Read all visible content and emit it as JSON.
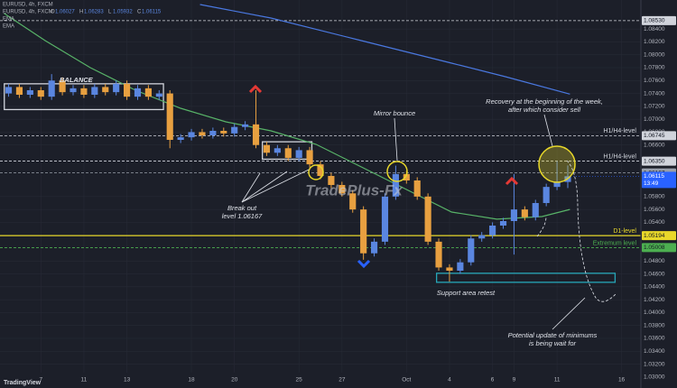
{
  "chart_data": {
    "type": "candlestick",
    "symbol": "EURUSD, 4h, FXCM",
    "ohlc_keys": [
      "O",
      "H",
      "L",
      "C"
    ],
    "x": [
      -1.5,
      -1,
      -0.5,
      0,
      0.5,
      1,
      1.5,
      2,
      2.5,
      3,
      3.5,
      4,
      4.5,
      5,
      5.5,
      6,
      6.5,
      7,
      7.5,
      8,
      8.5,
      9,
      9.5,
      10,
      10.5,
      11,
      11.5,
      12,
      12.5,
      13,
      13.5,
      14,
      14.5,
      15,
      15.5,
      16,
      16.5,
      17,
      17.5,
      18,
      18.5,
      19,
      19.5,
      20,
      20.5,
      21,
      21.5,
      22,
      22.5,
      23,
      23.5,
      24,
      24.5
    ],
    "open": [
      1.074,
      1.075,
      1.0738,
      1.0745,
      1.0735,
      1.076,
      1.0742,
      1.0748,
      1.0738,
      1.075,
      1.0742,
      1.0755,
      1.0735,
      1.0748,
      1.0735,
      1.074,
      1.0668,
      1.0672,
      1.068,
      1.0675,
      1.0682,
      1.0678,
      1.0688,
      1.0692,
      1.066,
      1.0648,
      1.0655,
      1.064,
      1.0652,
      1.063,
      1.0612,
      1.0598,
      1.0585,
      1.056,
      1.0492,
      1.051,
      1.058,
      1.0615,
      1.0605,
      1.058,
      1.051,
      1.047,
      1.0465,
      1.0478,
      1.0515,
      1.052,
      1.0535,
      1.0542,
      1.056,
      1.0548,
      1.057,
      1.0595,
      1.06027
    ],
    "high": [
      1.0755,
      1.0755,
      1.075,
      1.075,
      1.077,
      1.0765,
      1.0753,
      1.0753,
      1.0755,
      1.0755,
      1.076,
      1.076,
      1.0753,
      1.0753,
      1.0745,
      1.0745,
      1.0677,
      1.0685,
      1.0685,
      1.0687,
      1.0687,
      1.0693,
      1.0697,
      1.0745,
      1.0665,
      1.066,
      1.066,
      1.0657,
      1.0657,
      1.0635,
      1.0617,
      1.0603,
      1.059,
      1.0565,
      1.0515,
      1.0585,
      1.0628,
      1.062,
      1.061,
      1.0585,
      1.0515,
      1.0475,
      1.0483,
      1.052,
      1.0525,
      1.054,
      1.0547,
      1.0615,
      1.0565,
      1.0575,
      1.06,
      1.0635,
      1.06283
    ],
    "low": [
      1.0735,
      1.0733,
      1.0733,
      1.073,
      1.073,
      1.0737,
      1.0737,
      1.0733,
      1.0733,
      1.0737,
      1.0737,
      1.073,
      1.073,
      1.073,
      1.073,
      1.0655,
      1.0663,
      1.0667,
      1.067,
      1.067,
      1.0673,
      1.0673,
      1.0683,
      1.0655,
      1.0643,
      1.0643,
      1.0635,
      1.0635,
      1.0625,
      1.0607,
      1.0593,
      1.058,
      1.0555,
      1.0482,
      1.0487,
      1.0505,
      1.0575,
      1.06,
      1.0575,
      1.0505,
      1.0465,
      1.0448,
      1.046,
      1.0473,
      1.051,
      1.0515,
      1.053,
      1.049,
      1.0543,
      1.0543,
      1.0565,
      1.059,
      1.05932
    ],
    "close": [
      1.075,
      1.0738,
      1.0745,
      1.0735,
      1.076,
      1.0742,
      1.0748,
      1.0738,
      1.075,
      1.0742,
      1.0755,
      1.0735,
      1.0748,
      1.0735,
      1.074,
      1.0668,
      1.0672,
      1.068,
      1.0675,
      1.0682,
      1.0678,
      1.0688,
      1.0692,
      1.066,
      1.0648,
      1.0655,
      1.064,
      1.0652,
      1.063,
      1.0612,
      1.0598,
      1.0585,
      1.056,
      1.0492,
      1.051,
      1.058,
      1.0615,
      1.0605,
      1.058,
      1.051,
      1.047,
      1.0465,
      1.0478,
      1.0515,
      1.052,
      1.0535,
      1.0542,
      1.056,
      1.0548,
      1.057,
      1.0595,
      1.06027,
      1.06115
    ],
    "up_color": "#5a86e0",
    "down_color": "#e8a040",
    "series": [
      {
        "name": "EMA",
        "color": "#4a78e0",
        "x": [
          7.4,
          10.7,
          14.9,
          19.1,
          21.6,
          24.6
        ],
        "values": [
          1.0878,
          1.0857,
          1.0822,
          1.0787,
          1.0766,
          1.0739
        ]
      },
      {
        "name": "EMA",
        "color": "#58b368",
        "x": [
          -1.7,
          0.2,
          2.3,
          4.4,
          6.5,
          8.6,
          10.7,
          12.8,
          14.9,
          17.0,
          19.1,
          21.2,
          23.3,
          24.6
        ],
        "values": [
          1.0864,
          1.0822,
          1.078,
          1.0745,
          1.0717,
          1.0696,
          1.0682,
          1.0661,
          1.0626,
          1.0591,
          1.0556,
          1.0545,
          1.0549,
          1.056
        ]
      }
    ],
    "levels": [
      {
        "value": 1.0853,
        "label": "1.08530",
        "color": "#d1d4dc",
        "style": "dashed"
      },
      {
        "value": 1.06745,
        "label": "1.06745",
        "text": "H1/H4-level",
        "color": "#d1d4dc",
        "style": "dashed"
      },
      {
        "value": 1.0635,
        "label": "1.06350",
        "text": "H1/H4-level",
        "color": "#d1d4dc",
        "style": "dashed"
      },
      {
        "value": 1.06167,
        "label": "1.06167",
        "color": "#9aa0ab",
        "style": "dashed"
      },
      {
        "value": 1.05194,
        "label": "1.05194",
        "text": "D1-level",
        "color": "#e8d82a",
        "style": "solid"
      },
      {
        "value": 1.05008,
        "label": "1.05008",
        "text": "Extremum level",
        "color": "#4caf50",
        "style": "dashed"
      }
    ],
    "countdown": "13:49",
    "zones": [
      {
        "x": [
          -1.7,
          5.7
        ],
        "y": [
          1.0715,
          1.0755
        ],
        "color": "#d1d4dc"
      },
      {
        "x": [
          10.3,
          12.6
        ],
        "y": [
          1.0638,
          1.0665
        ],
        "color": "#d1d4dc"
      },
      {
        "x": [
          18.4,
          26.7
        ],
        "y": [
          1.0447,
          1.0461
        ],
        "color": "#26a6b8"
      }
    ],
    "annotations": {
      "balance": "BALANCE",
      "mirror": "Mirror bounce",
      "recovery": [
        "Recovery at the beginning of the week,",
        "after which consider sell"
      ],
      "breakout": [
        "Break out",
        "level 1.06167"
      ],
      "support": "Support area retest",
      "potential": [
        "Potential update of minimums",
        "is being wait for"
      ],
      "watermark": "TradePlus-Fx",
      "logo": "TradingView"
    },
    "xlim": [
      -1.9,
      27.9
    ],
    "ylim": [
      1.0283,
      1.0885
    ],
    "xticks": [
      {
        "value": 0,
        "label": "7"
      },
      {
        "value": 2,
        "label": "11"
      },
      {
        "value": 4,
        "label": "13"
      },
      {
        "value": 7,
        "label": "18"
      },
      {
        "value": 9,
        "label": "20"
      },
      {
        "value": 12,
        "label": "25"
      },
      {
        "value": 14,
        "label": "27"
      },
      {
        "value": 17,
        "label": "Oct"
      },
      {
        "value": 19,
        "label": "4"
      },
      {
        "value": 21,
        "label": "6"
      },
      {
        "value": 22,
        "label": "9"
      },
      {
        "value": 24,
        "label": "11"
      },
      {
        "value": 27,
        "label": "16"
      }
    ],
    "yticks": [
      {
        "value": 1.03,
        "label": "1.03000"
      },
      {
        "value": 1.032,
        "label": "1.03200"
      },
      {
        "value": 1.034,
        "label": "1.03400"
      },
      {
        "value": 1.036,
        "label": "1.03600"
      },
      {
        "value": 1.038,
        "label": "1.03800"
      },
      {
        "value": 1.04,
        "label": "1.04000"
      },
      {
        "value": 1.042,
        "label": "1.04200"
      },
      {
        "value": 1.044,
        "label": "1.04400"
      },
      {
        "value": 1.046,
        "label": "1.04600"
      },
      {
        "value": 1.048,
        "label": "1.04800"
      },
      {
        "value": 1.054,
        "label": "1.05400"
      },
      {
        "value": 1.056,
        "label": "1.05600"
      },
      {
        "value": 1.058,
        "label": "1.05800"
      },
      {
        "value": 1.066,
        "label": "1.06600"
      },
      {
        "value": 1.068,
        "label": "1.06800"
      },
      {
        "value": 1.07,
        "label": "1.07000"
      },
      {
        "value": 1.072,
        "label": "1.07200"
      },
      {
        "value": 1.074,
        "label": "1.07400"
      },
      {
        "value": 1.076,
        "label": "1.07600"
      },
      {
        "value": 1.078,
        "label": "1.07800"
      },
      {
        "value": 1.08,
        "label": "1.08000"
      },
      {
        "value": 1.082,
        "label": "1.08200"
      },
      {
        "value": 1.084,
        "label": "1.08400"
      }
    ],
    "grid": true
  }
}
